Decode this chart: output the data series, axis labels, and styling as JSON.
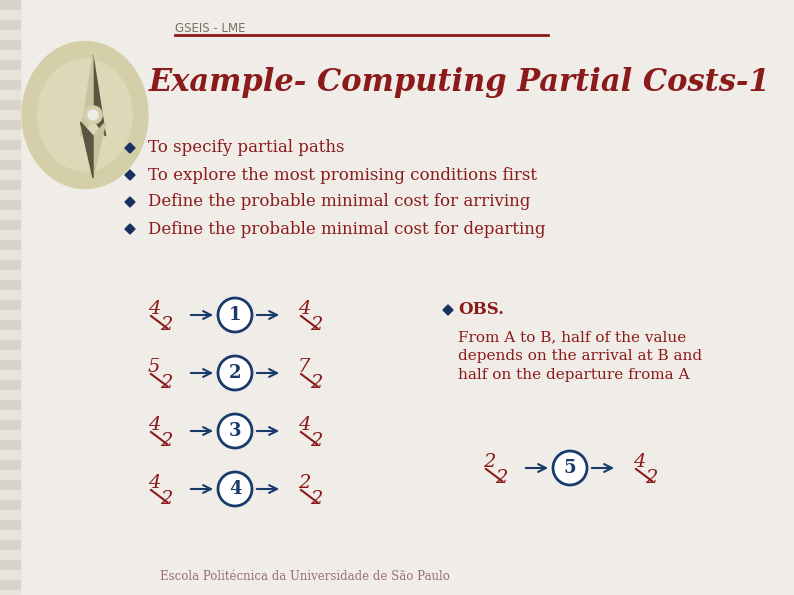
{
  "bg_color": "#f0ede8",
  "title": "Example- Computing Partial Costs-1",
  "title_color": "#8b1a1a",
  "header_text": "GSEIS - LME",
  "header_color": "#7a7060",
  "footer_text": "Escola Politécnica da Universidade de São Paulo",
  "footer_color": "#9a7070",
  "bullet_color": "#8b1a1a",
  "bullet_marker_color": "#1a3060",
  "node_color": "#1a3a6b",
  "node_bg": "#ffffff",
  "arrow_color": "#1a3a6b",
  "fraction_color": "#8b1a1a",
  "stripe_colors": [
    "#d8d4cc",
    "#e8e4dc"
  ],
  "compass_outer": "#d4cfa8",
  "compass_mid": "#ddd8b8",
  "compass_dark_arrow": "#5a5540",
  "compass_light_arrow": "#c8c4a0",
  "compass_center": "#c8c09a",
  "header_line_color": "#8b1a1a",
  "bullets": [
    "To specify partial paths",
    "To explore the most promising conditions first",
    "Define the probable minimal cost for arriving",
    "Define the probable minimal cost for departing"
  ],
  "diagrams": [
    {
      "node": "1",
      "left_num": "4",
      "left_den": "2",
      "right_num": "4",
      "right_den": "2"
    },
    {
      "node": "2",
      "left_num": "5",
      "left_den": "2",
      "right_num": "7",
      "right_den": "2"
    },
    {
      "node": "3",
      "left_num": "4",
      "left_den": "2",
      "right_num": "4",
      "right_den": "2"
    },
    {
      "node": "4",
      "left_num": "4",
      "left_den": "2",
      "right_num": "2",
      "right_den": "2"
    }
  ],
  "diagram5": {
    "node": "5",
    "left_num": "2",
    "left_den": "2",
    "right_num": "4",
    "right_den": "2"
  },
  "obs_title": "OBS.",
  "obs_lines": [
    "From A to B, half of the value",
    "depends on the arrival at B and",
    "half on the departure froma A"
  ],
  "fig_width": 7.94,
  "fig_height": 5.95,
  "dpi": 100
}
